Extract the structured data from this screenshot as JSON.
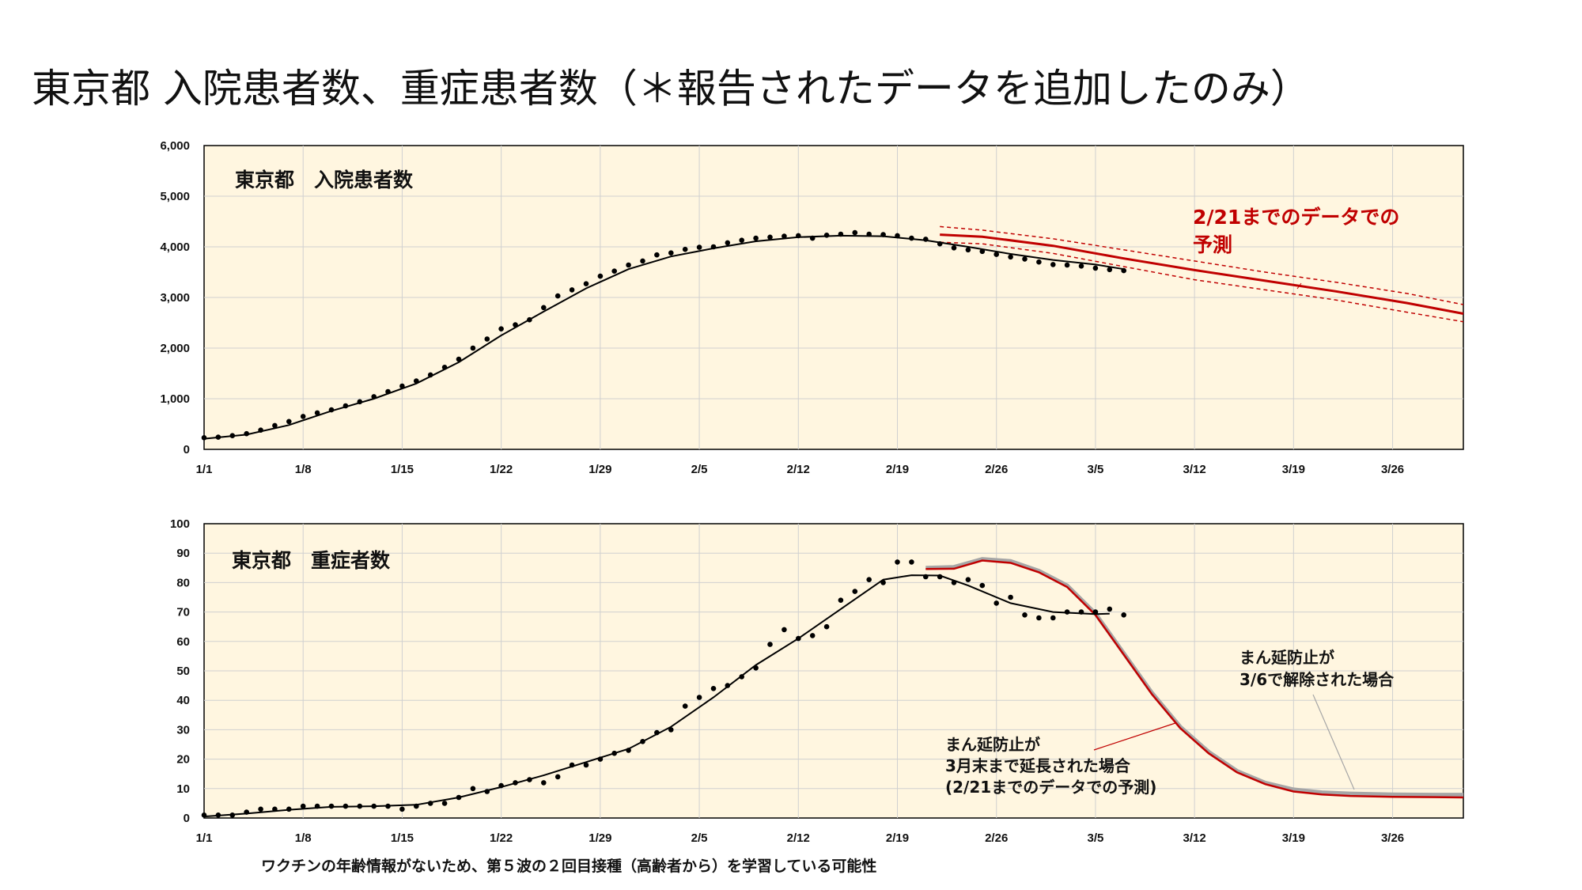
{
  "title": "東京都 入院患者数、重症患者数（＊報告されたデータを追加したのみ）",
  "footnote": "ワクチンの年齢情報がないため、第５波の２回目接種（高齢者から）を学習している可能性",
  "colors": {
    "plot_bg": "#fff6e0",
    "observed": "#000000",
    "forecast": "#c00000",
    "alt_scenario": "#a6a6a6"
  },
  "chart_data": [
    {
      "type": "line",
      "title": "東京都　入院患者数",
      "xlabel": "",
      "ylabel": "",
      "x_tick_labels": [
        "1/1",
        "1/8",
        "1/15",
        "1/22",
        "1/29",
        "2/5",
        "2/12",
        "2/19",
        "2/26",
        "3/5",
        "3/12",
        "3/19",
        "3/26"
      ],
      "y_tick_labels": [
        "0",
        "1,000",
        "2,000",
        "3,000",
        "4,000",
        "5,000",
        "6,000"
      ],
      "ylim": [
        0,
        6000
      ],
      "xlim_days": [
        0,
        89
      ],
      "grid": true,
      "series": [
        {
          "kind": "points",
          "x": [
            0,
            1,
            2,
            3,
            4,
            5,
            6,
            7,
            8,
            9,
            10,
            11,
            12,
            13,
            14,
            15,
            16,
            17,
            18,
            19,
            20,
            21,
            22,
            23,
            24,
            25,
            26,
            27,
            28,
            29,
            30,
            31,
            32,
            33,
            34,
            35,
            36,
            37,
            38,
            39,
            40,
            41,
            42,
            43,
            44,
            45,
            46,
            47,
            48,
            49,
            50,
            51,
            52,
            53,
            54,
            55,
            56,
            57,
            58,
            59,
            60,
            61,
            62,
            63,
            64,
            65
          ],
          "y": [
            230,
            240,
            270,
            310,
            380,
            470,
            550,
            650,
            720,
            780,
            860,
            940,
            1040,
            1140,
            1250,
            1350,
            1470,
            1620,
            1780,
            2000,
            2180,
            2380,
            2460,
            2560,
            2800,
            3030,
            3150,
            3270,
            3420,
            3520,
            3640,
            3720,
            3840,
            3880,
            3950,
            3990,
            4000,
            4080,
            4130,
            4170,
            4190,
            4210,
            4220,
            4170,
            4230,
            4250,
            4280,
            4250,
            4240,
            4220,
            4170,
            4150,
            4060,
            3980,
            3940,
            3910,
            3850,
            3800,
            3760,
            3700,
            3650,
            3640,
            3620,
            3580,
            3550,
            3530
          ]
        },
        {
          "kind": "line",
          "x": [
            0,
            3,
            6,
            9,
            12,
            15,
            18,
            21,
            24,
            27,
            30,
            33,
            36,
            39,
            42,
            45,
            48,
            51,
            54,
            57,
            60,
            63,
            65
          ],
          "y": [
            210,
            290,
            480,
            760,
            1000,
            1300,
            1720,
            2250,
            2720,
            3180,
            3560,
            3810,
            3970,
            4110,
            4190,
            4220,
            4210,
            4130,
            4000,
            3860,
            3740,
            3650,
            3560
          ]
        },
        {
          "kind": "forecast",
          "x": [
            52,
            55,
            60,
            65,
            70,
            75,
            80,
            85,
            89
          ],
          "y": [
            4240,
            4200,
            4020,
            3770,
            3540,
            3330,
            3120,
            2890,
            2680
          ]
        },
        {
          "kind": "forecast_upper",
          "x": [
            52,
            55,
            60,
            65,
            70,
            75,
            80,
            85,
            89
          ],
          "y": [
            4400,
            4330,
            4160,
            3940,
            3720,
            3500,
            3300,
            3080,
            2860
          ]
        },
        {
          "kind": "forecast_lower",
          "x": [
            52,
            55,
            60,
            65,
            70,
            75,
            80,
            85,
            89
          ],
          "y": [
            4090,
            4060,
            3870,
            3610,
            3350,
            3150,
            2950,
            2710,
            2520
          ]
        }
      ],
      "annotations": [
        "2/21までのデータでの",
        "予測"
      ]
    },
    {
      "type": "line",
      "title": "東京都　重症者数",
      "xlabel": "",
      "ylabel": "",
      "x_tick_labels": [
        "1/1",
        "1/8",
        "1/15",
        "1/22",
        "1/29",
        "2/5",
        "2/12",
        "2/19",
        "2/26",
        "3/5",
        "3/12",
        "3/19",
        "3/26"
      ],
      "y_tick_labels": [
        "0",
        "10",
        "20",
        "30",
        "40",
        "50",
        "60",
        "70",
        "80",
        "90",
        "100"
      ],
      "ylim": [
        0,
        100
      ],
      "xlim_days": [
        0,
        89
      ],
      "grid": true,
      "series": [
        {
          "kind": "points",
          "x": [
            0,
            1,
            2,
            3,
            4,
            5,
            6,
            7,
            8,
            9,
            10,
            11,
            12,
            13,
            14,
            15,
            16,
            17,
            18,
            19,
            20,
            21,
            22,
            23,
            24,
            25,
            26,
            27,
            28,
            29,
            30,
            31,
            32,
            33,
            34,
            35,
            36,
            37,
            38,
            39,
            40,
            41,
            42,
            43,
            44,
            45,
            46,
            47,
            48,
            49,
            50,
            51,
            52,
            53,
            54,
            55,
            56,
            57,
            58,
            59,
            60,
            61,
            62,
            63,
            64,
            65
          ],
          "y": [
            1,
            1,
            1,
            2,
            3,
            3,
            3,
            4,
            4,
            4,
            4,
            4,
            4,
            4,
            3,
            4,
            5,
            5,
            7,
            10,
            9,
            11,
            12,
            13,
            12,
            14,
            18,
            18,
            20,
            22,
            23,
            26,
            29,
            30,
            38,
            41,
            44,
            45,
            48,
            51,
            59,
            64,
            61,
            62,
            65,
            74,
            77,
            81,
            80,
            87,
            87,
            82,
            82,
            80,
            81,
            79,
            73,
            75,
            69,
            68,
            68,
            70,
            70,
            70,
            71,
            69
          ]
        },
        {
          "kind": "line",
          "x": [
            0,
            3,
            6,
            9,
            12,
            15,
            18,
            21,
            24,
            27,
            30,
            33,
            36,
            39,
            42,
            45,
            48,
            50,
            52,
            54,
            57,
            60,
            63,
            64
          ],
          "y": [
            0.5,
            1.5,
            2.8,
            3.8,
            4.0,
            4.5,
            7,
            10.5,
            14.5,
            19,
            23.5,
            31,
            41,
            52,
            61,
            71,
            81,
            82.5,
            82.4,
            79,
            73,
            70,
            69.3,
            69.4
          ]
        },
        {
          "kind": "scenario_extended",
          "x": [
            51,
            53,
            55,
            57,
            59,
            61,
            63,
            65,
            67,
            69,
            71,
            73,
            75,
            77,
            79,
            81,
            84,
            87,
            89
          ],
          "y": [
            84.6,
            84.7,
            87.5,
            86.7,
            83.5,
            78.5,
            69,
            55.5,
            42,
            30.5,
            22,
            15.5,
            11.5,
            9,
            8,
            7.5,
            7.2,
            7.1,
            7
          ]
        },
        {
          "kind": "scenario_lifted",
          "x": [
            51,
            53,
            55,
            57,
            59,
            61,
            63,
            65,
            67,
            69,
            71,
            73,
            75,
            77,
            79,
            81,
            84,
            87,
            89
          ],
          "y": [
            85,
            85.3,
            88,
            87.3,
            84,
            79,
            69.5,
            56,
            42.5,
            31,
            22.5,
            16,
            12,
            9.7,
            8.7,
            8.3,
            8,
            7.9,
            7.9
          ]
        }
      ],
      "annotations": [
        "まん延防止が",
        "3/6で解除された場合",
        "まん延防止が",
        "3月末まで延長された場合",
        "(2/21までのデータでの予測)"
      ]
    }
  ]
}
